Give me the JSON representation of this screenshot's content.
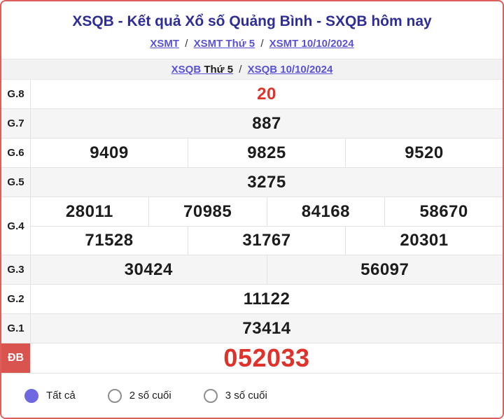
{
  "header": {
    "title": "XSQB - Kết quả Xổ số Quảng Bình - SXQB hôm nay",
    "breadcrumb1": {
      "links": [
        "XSMT",
        "XSMT Thứ 5",
        "XSMT 10/10/2024"
      ],
      "separator": "/"
    },
    "breadcrumb2": {
      "link1_blue": "XSQB",
      "link1_dark": "Thứ 5",
      "separator": "/",
      "link2": "XSQB 10/10/2024"
    }
  },
  "results": {
    "rows": [
      {
        "label": "G.8",
        "shade": false,
        "special": false,
        "red": true,
        "big": false,
        "lines": [
          [
            "20"
          ]
        ]
      },
      {
        "label": "G.7",
        "shade": true,
        "special": false,
        "red": false,
        "big": false,
        "lines": [
          [
            "887"
          ]
        ]
      },
      {
        "label": "G.6",
        "shade": false,
        "special": false,
        "red": false,
        "big": false,
        "lines": [
          [
            "9409",
            "9825",
            "9520"
          ]
        ]
      },
      {
        "label": "G.5",
        "shade": true,
        "special": false,
        "red": false,
        "big": false,
        "lines": [
          [
            "3275"
          ]
        ]
      },
      {
        "label": "G.4",
        "shade": false,
        "special": false,
        "red": false,
        "big": false,
        "lines": [
          [
            "28011",
            "70985",
            "84168",
            "58670"
          ],
          [
            "71528",
            "31767",
            "20301"
          ]
        ]
      },
      {
        "label": "G.3",
        "shade": true,
        "special": false,
        "red": false,
        "big": false,
        "lines": [
          [
            "30424",
            "56097"
          ]
        ]
      },
      {
        "label": "G.2",
        "shade": false,
        "special": false,
        "red": false,
        "big": false,
        "lines": [
          [
            "11122"
          ]
        ]
      },
      {
        "label": "G.1",
        "shade": true,
        "special": false,
        "red": false,
        "big": false,
        "lines": [
          [
            "73414"
          ]
        ]
      },
      {
        "label": "ĐB",
        "shade": false,
        "special": true,
        "red": true,
        "big": true,
        "lines": [
          [
            "052033"
          ]
        ]
      }
    ]
  },
  "filters": {
    "options": [
      {
        "label": "Tất cả",
        "selected": true
      },
      {
        "label": "2 số cuối",
        "selected": false
      },
      {
        "label": "3 số cuối",
        "selected": false
      }
    ]
  },
  "colors": {
    "card_border": "#dd5f5b",
    "special_label_bg": "#d9534f",
    "value_red": "#dd332b",
    "title_navy": "#2e2e96",
    "link_blue": "#5a52d5",
    "radio_purple": "#6f68e0",
    "shade_row_bg": "#f5f5f6",
    "band_bg": "#f2f2f2"
  }
}
